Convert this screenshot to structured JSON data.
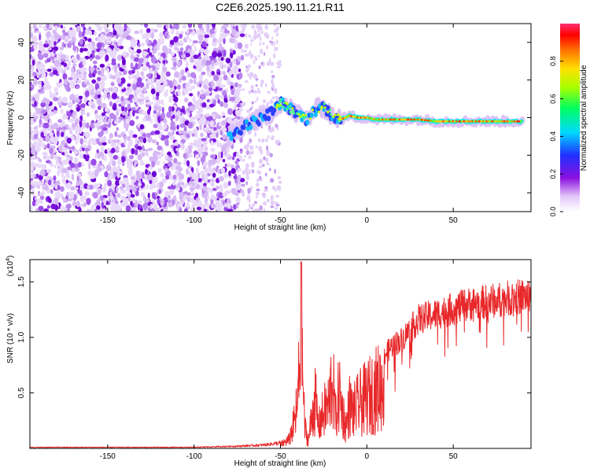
{
  "figure_title": "C2E6.2025.190.11.21.R11",
  "chart_data": [
    {
      "type": "heatmap",
      "xlabel": "Height of straight line (km)",
      "ylabel": "Frequency (Hz)",
      "xlim": [
        -195,
        95
      ],
      "ylim": [
        -50,
        50
      ],
      "xticks": [
        -150,
        -100,
        -50,
        0,
        50
      ],
      "yticks": [
        -40,
        -20,
        0,
        20,
        40
      ],
      "colorbar": {
        "label": "Normalized spectral amplitude",
        "range": [
          0.0,
          1.0
        ],
        "ticks": [
          0.0,
          0.2,
          0.4,
          0.6,
          0.8
        ],
        "tick_labels": [
          "0.0",
          "0.2",
          "0.4",
          "0.6",
          "0.8"
        ],
        "colormap": [
          "#ffffff",
          "#d8b8f0",
          "#7a00d8",
          "#2030ff",
          "#00e0ff",
          "#00ff60",
          "#b0ff00",
          "#ffe000",
          "#ff7000",
          "#ff0000",
          "#ff3070"
        ]
      },
      "features": {
        "noise_region_x": [
          -195,
          -72
        ],
        "tone_track": {
          "x": [
            -80,
            -75,
            -70,
            -65,
            -60,
            -55,
            -50,
            -45,
            -40,
            -35,
            -30,
            -25,
            -20,
            -15,
            -10,
            -5,
            0,
            5,
            10,
            20,
            30,
            40,
            50,
            60,
            70,
            80,
            90
          ],
          "freq": [
            -11,
            -7,
            -4,
            -2,
            0,
            3,
            8,
            5,
            2,
            -1,
            4,
            6,
            1,
            -1,
            1,
            0,
            0,
            -1,
            -1,
            -1,
            -1,
            -2,
            -2,
            -2,
            -2,
            -2,
            -2
          ]
        }
      }
    },
    {
      "type": "line",
      "xlabel": "Height of straight line (km)",
      "ylabel": "SNR (10 * v/v)",
      "y_scale_label": "(x10",
      "y_scale_exponent": "4",
      "xlim": [
        -195,
        95
      ],
      "ylim": [
        0,
        1.7
      ],
      "xticks": [
        -150,
        -100,
        -50,
        0,
        50
      ],
      "yticks": [
        0.5,
        1.0,
        1.5
      ],
      "ytick_labels": [
        "0.5",
        "1.0",
        "1.5"
      ],
      "color": "#e8282a",
      "series": [
        {
          "x": [
            -195,
            -150,
            -100,
            -75,
            -60,
            -50,
            -45,
            -42,
            -40,
            -38,
            -36,
            -34,
            -32,
            -30,
            -28,
            -25,
            -22,
            -20,
            -18,
            -16,
            -14,
            -12,
            -10,
            -8,
            -5,
            0,
            5,
            10,
            15,
            20,
            25,
            30,
            40,
            50,
            60,
            70,
            80,
            90,
            95
          ],
          "y": [
            0.01,
            0.01,
            0.01,
            0.02,
            0.03,
            0.05,
            0.12,
            0.35,
            0.6,
            1.68,
            0.3,
            0.1,
            0.4,
            0.7,
            0.3,
            0.5,
            0.6,
            1.0,
            0.4,
            0.8,
            0.5,
            0.3,
            0.6,
            0.5,
            0.6,
            0.7,
            0.8,
            0.9,
            1.0,
            1.05,
            1.15,
            1.25,
            1.3,
            1.35,
            1.4,
            1.42,
            1.45,
            1.47,
            1.48
          ]
        }
      ]
    }
  ]
}
